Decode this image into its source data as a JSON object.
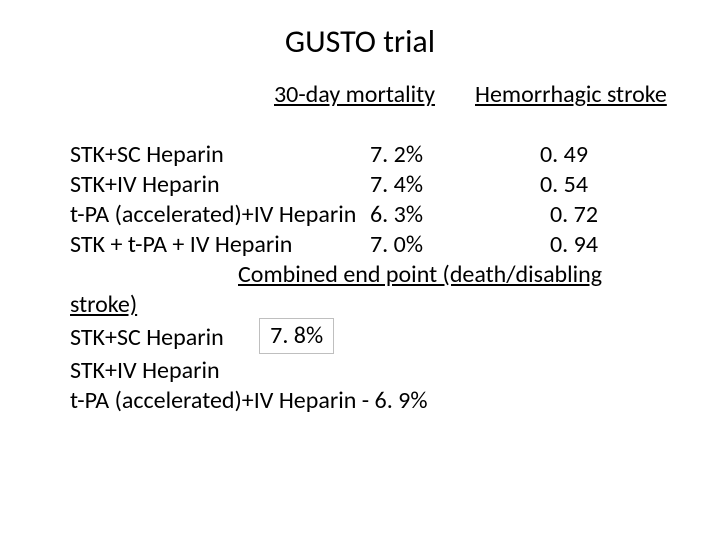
{
  "title": "GUSTO trial",
  "headers": {
    "mortality": "30-day mortality",
    "hemorrhagic": "Hemorrhagic stroke"
  },
  "rows": [
    {
      "name": "STK+SC Heparin",
      "mortality": "7. 2%",
      "hem": "0. 49",
      "hem_indent": false
    },
    {
      "name": "STK+IV Heparin",
      "mortality": "7. 4%",
      "hem": "0. 54",
      "hem_indent": false
    },
    {
      "name": "t-PA (accelerated)+IV Heparin",
      "mortality": "6. 3%",
      "hem": "0. 72",
      "hem_indent": true
    },
    {
      "name": "STK + t-PA + IV Heparin",
      "mortality": "7. 0%",
      "hem": "0. 94",
      "hem_indent": true
    }
  ],
  "combined": {
    "label": "Combined end point (death/disabling",
    "stroke_word": "stroke)",
    "line1_name": "STK+SC Heparin",
    "line1_box": "7. 8%",
    "line2_name": "STK+IV Heparin",
    "line3": "t-PA (accelerated)+IV Heparin  - 6. 9%"
  },
  "colors": {
    "text": "#000000",
    "background": "#ffffff",
    "box_border": "#bfbfbf"
  },
  "fonts": {
    "title_size_pt": 32,
    "body_size_pt": 24,
    "family": "Calibri"
  }
}
